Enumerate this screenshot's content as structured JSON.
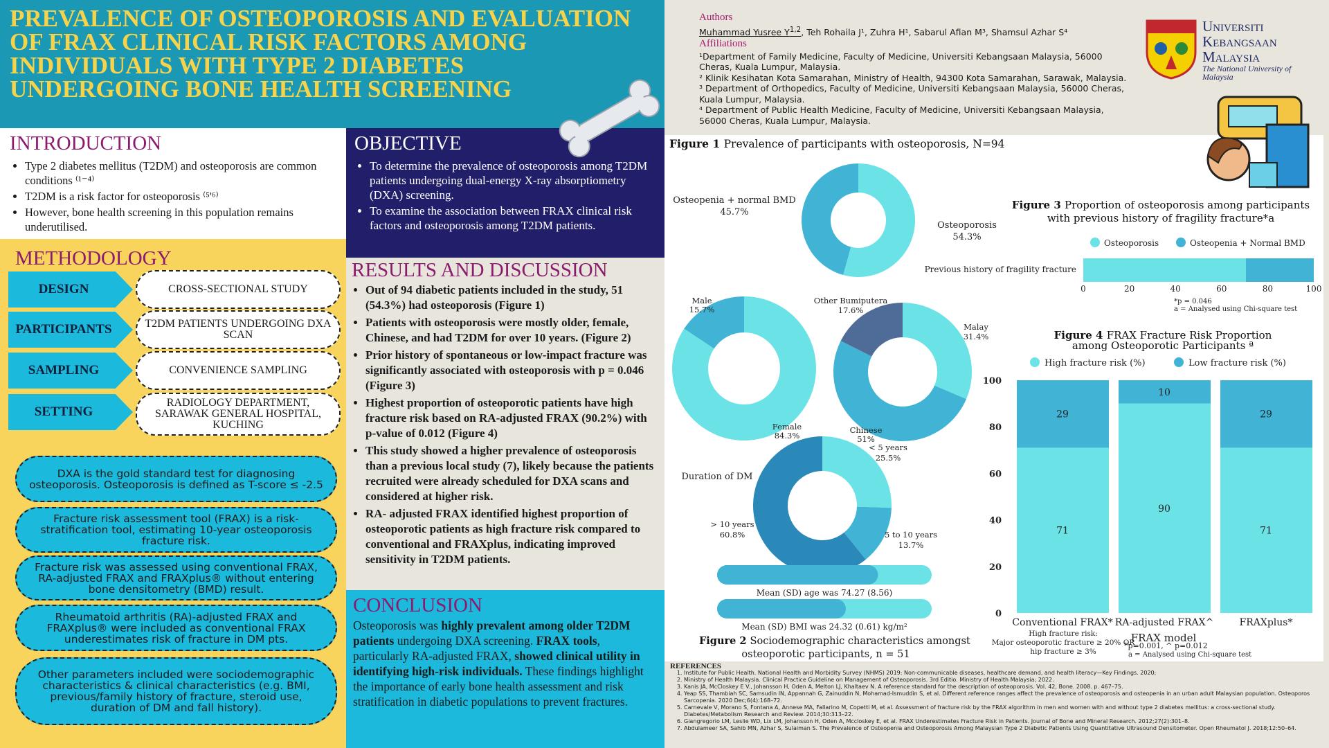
{
  "title": "Prevalence of osteoporosis and evaluation of FRAX clinical risk factors among individuals with type 2 diabetes undergoing bone health screening",
  "authors": {
    "heading": "Authors",
    "first": "Muhammad Yusree Y",
    "first_sup": "1,2",
    "rest": ", Teh Rohaila J¹, Zuhra H¹, Sabarul Afian M³, Shamsul Azhar S⁴"
  },
  "affiliations": {
    "heading": "Affiliations",
    "items": [
      "¹Department of Family Medicine, Faculty of Medicine, Universiti Kebangsaan Malaysia, 56000 Cheras, Kuala Lumpur, Malaysia.",
      "² Klinik Kesihatan Kota Samarahan, Ministry of Health, 94300 Kota Samarahan, Sarawak, Malaysia.",
      "³ Department of Orthopedics, Faculty of Medicine, Universiti Kebangsaan Malaysia, 56000 Cheras, Kuala Lumpur, Malaysia.",
      "⁴ Department of Public Health Medicine, Faculty of Medicine, Universiti Kebangsaan Malaysia, 56000 Cheras, Kuala Lumpur, Malaysia."
    ]
  },
  "logo": {
    "line1": "Universiti",
    "line2": "Kebangsaan",
    "line3": "Malaysia",
    "sub": "The National University of Malaysia"
  },
  "introduction": {
    "heading": "INTRODUCTION",
    "items": [
      "Type 2 diabetes mellitus (T2DM) and osteoporosis are common conditions ⁽¹⁻⁴⁾",
      "T2DM is a risk factor for osteoporosis ⁽⁵'⁶⁾",
      "However, bone health screening in this population remains underutilised."
    ]
  },
  "objective": {
    "heading": "OBJECTIVE",
    "items": [
      "To determine the prevalence of osteoporosis among T2DM patients undergoing dual-energy X-ray absorptiometry (DXA) screening.",
      "To examine the association between FRAX clinical risk factors and osteoporosis among T2DM patients."
    ]
  },
  "methodology": {
    "heading": "METHODOLOGY",
    "rows": [
      {
        "label": "DESIGN",
        "value": "CROSS-SECTIONAL STUDY"
      },
      {
        "label": "PARTICIPANTS",
        "value": "T2DM PATIENTS UNDERGOING DXA SCAN"
      },
      {
        "label": "SAMPLING",
        "value": "CONVENIENCE SAMPLING"
      },
      {
        "label": "SETTING",
        "value": "RADIOLOGY DEPARTMENT, SARAWAK GENERAL HOSPITAL, KUCHING"
      }
    ],
    "notes": [
      "DXA is the gold standard test for diagnosing osteoporosis. Osteoporosis is defined as T-score ≤ -2.5",
      "Fracture risk assessment tool (FRAX) is a risk-stratification tool, estimating 10-year osteoporosis fracture risk.",
      "Fracture risk was assessed using conventional FRAX, RA-adjusted FRAX and FRAXplus® without entering bone densitometry (BMD) result.",
      "Rheumatoid arthritis (RA)-adjusted FRAX and FRAXplus® were included as conventional FRAX underestimates risk of fracture in DM pts.",
      "Other parameters included were sociodemographic characteristics & clinical characteristics (e.g. BMI, previous/family history of fracture, steroid use, duration of DM and fall history)."
    ]
  },
  "results": {
    "heading": "RESULTS AND DISCUSSION",
    "items": [
      "Out of 94 diabetic patients included in the study, 51 (54.3%) had osteoporosis  (Figure 1)",
      "Patients with osteoporosis were mostly older, female, Chinese, and had T2DM for over 10 years. (Figure 2)",
      "Prior history of spontaneous or low-impact fracture was significantly associated with osteoporosis with p = 0.046 (Figure 3)",
      "Highest proportion of osteoporotic patients have high fracture risk based on RA-adjusted FRAX (90.2%) with p-value of 0.012 (Figure 4)",
      "This study showed a higher prevalence of osteoporosis than a previous local study (7), likely because the patients recruited were already scheduled for DXA scans and considered at higher risk.",
      "RA- adjusted FRAX identified highest proportion of osteoporotic patients as high fracture risk compared to conventional and FRAXplus, indicating improved sensitivity in T2DM patients."
    ]
  },
  "conclusion": {
    "heading": "CONCLUSION",
    "segments": [
      {
        "t": "Osteoporosis was ",
        "b": false
      },
      {
        "t": "highly prevalent among older T2DM patients",
        "b": true
      },
      {
        "t": " undergoing DXA screening. ",
        "b": false
      },
      {
        "t": "FRAX tools",
        "b": true
      },
      {
        "t": ", particularly RA-adjusted FRAX, ",
        "b": false
      },
      {
        "t": "showed clinical utility in identifying high-risk individuals.",
        "b": true
      },
      {
        "t": " These findings highlight the importance of early bone health assessment and risk stratification in diabetic populations to prevent fractures.",
        "b": false
      }
    ]
  },
  "colors": {
    "light": "#6be3e6",
    "medium": "#41b4d5",
    "dark": "#2b89b9",
    "navy": "#4f6b98"
  },
  "chart_data": [
    {
      "id": "fig1",
      "type": "pie",
      "title_bold": "Figure 1",
      "title": "Prevalence of participants with osteoporosis, N=94",
      "slices": [
        {
          "label": "Osteoporosis",
          "value": 54.3,
          "text": "54.3%"
        },
        {
          "label": "Osteopenia + normal BMD",
          "value": 45.7,
          "text": "45.7%"
        }
      ]
    },
    {
      "id": "fig2",
      "type": "pie",
      "title_bold": "Figure 2",
      "title": "Sociodemographic characteristics amongst osteoporotic participants, n = 51",
      "gender": [
        {
          "label": "Female",
          "value": 84.3,
          "text": "84.3%"
        },
        {
          "label": "Male",
          "value": 15.7,
          "text": "15.7%"
        }
      ],
      "ethnicity": [
        {
          "label": "Malay",
          "value": 31.4,
          "text": "31.4%"
        },
        {
          "label": "Chinese",
          "value": 51,
          "text": "51%"
        },
        {
          "label": "Other Bumiputera",
          "value": 17.6,
          "text": "17.6%"
        }
      ],
      "duration": {
        "label": "Duration of DM",
        "slices": [
          {
            "label": "< 5 years",
            "value": 25.5,
            "text": "25.5%"
          },
          {
            "label": "5 to 10 years",
            "value": 13.7,
            "text": "13.7%"
          },
          {
            "label": "> 10 years",
            "value": 60.8,
            "text": "60.8%"
          }
        ]
      },
      "age": {
        "text": "Mean (SD) age was 74.27 (8.56)",
        "fill_percent": 75
      },
      "bmi": {
        "text": "Mean (SD) BMI was 24.32 (0.61) kg/m²",
        "fill_percent": 60
      }
    },
    {
      "id": "fig3",
      "type": "bar",
      "orientation": "horizontal",
      "stacked": true,
      "title_bold": "Figure 3",
      "title": "Proportion of osteoporosis among participants with previous history of fragility fracture*a",
      "categories": [
        "Previous history of fragility fracture"
      ],
      "series": [
        {
          "name": "Osteoporosis",
          "values": [
            70.5
          ]
        },
        {
          "name": "Osteopenia + Normal BMD",
          "values": [
            29.5
          ]
        }
      ],
      "xlim": [
        0,
        100
      ],
      "xticks": [
        0,
        20,
        40,
        60,
        80,
        100
      ],
      "notes": [
        "*p = 0.046",
        "a = Analysed using Chi-square test"
      ]
    },
    {
      "id": "fig4",
      "type": "bar",
      "stacked": true,
      "title_bold": "Figure 4",
      "title": "FRAX Fracture Risk Proportion among Osteoporotic Participants ª",
      "xlabel": "FRAX model",
      "categories": [
        "Conventional FRAX*",
        "RA-adjusted FRAX^",
        "FRAXplus*"
      ],
      "series": [
        {
          "name": "High fracture risk (%)",
          "values": [
            71,
            90,
            71
          ]
        },
        {
          "name": "Low fracture risk (%)",
          "values": [
            29,
            10,
            29
          ]
        }
      ],
      "ylim": [
        0,
        100
      ],
      "yticks": [
        0,
        20,
        40,
        60,
        80,
        100
      ],
      "notes": [
        "*p=0.001, ^ p=0.012",
        "a = Analysed using Chi-square test"
      ],
      "definition": [
        "High fracture risk:",
        "Major osteoporotic fracture ≥ 20% OR",
        "hip fracture ≥ 3%"
      ]
    }
  ],
  "references": {
    "heading": "REFERENCES",
    "items": [
      "Institute for Public Health. National Health and Morbidity Survey (NHMS) 2019: Non-communicable diseases, healthcare demand, and health literacy—Key Findings. 2020;",
      "Ministry of Health Malaysia. Clinical Practice Guideline on Management of Osteoporosis. 3rd Editio. Ministry of Health Malaysia; 2022.",
      "Kanis JA, McCloskey E V., Johansson H, Oden A, Melton LJ, Khaltaev N. A reference standard for the description of osteoporosis. Vol. 42, Bone. 2008. p. 467–75.",
      "Yeap SS, Thambiah SC, Samsudin IN, Appannah G, Zainuddin N, Mohamad-Ismuddin S, et al. Different reference ranges affect the prevalence of osteoporosis and osteopenia in an urban adult Malaysian population. Osteoporos Sarcopenia. 2020 Dec;6(4):168–72.",
      "Carnevale V, Morano S, Fontana A, Annese MA, Fallarino M, Copetti M, et al. Assessment of fracture risk by the FRAX algorithm in men and women with and without type 2 diabetes mellitus: a cross-sectional study. Diabetes/Metabolism Research and Review. 2014;30:313–22.",
      "Giangregorio LM, Leslie WD, Lix LM, Johansson H, Oden A, Mccloskey E, et al. FRAX Underestimates Fracture Risk in Patients. Journal of Bone and Mineral Research. 2012;27(2):301–8.",
      "Abdulameer SA, Sahib MN, Azhar S, Sulaiman S. The Prevalence of Osteopenia and Osteoporosis Among Malaysian Type 2 Diabetic Patients Using Quantitative Ultrasound Densitometer. Open Rheumatol J. 2018;12:50–64."
    ]
  }
}
